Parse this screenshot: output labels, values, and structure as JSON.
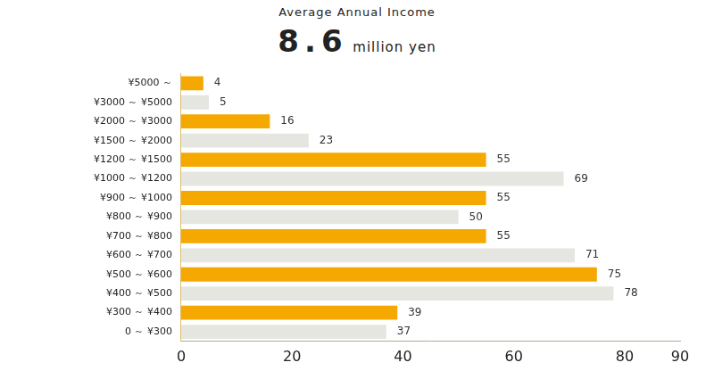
{
  "chart_data": {
    "type": "bar",
    "orientation": "horizontal",
    "title": "Average Annual Income",
    "subtitle": "8.6 million yen",
    "categories": [
      "¥5000 ～",
      "¥3000 ～ ¥5000",
      "¥2000 ～ ¥3000",
      "¥1500 ～ ¥2000",
      "¥1200 ～ ¥1500",
      "¥1000 ～ ¥1200",
      "¥900 ～ ¥1000",
      "¥800 ～ ¥900",
      "¥700 ～ ¥800",
      "¥600 ～ ¥700",
      "¥500 ～ ¥600",
      "¥400 ～ ¥500",
      "¥300 ～ ¥400",
      "0 ～ ¥300"
    ],
    "values": [
      4,
      5,
      16,
      23,
      55,
      69,
      55,
      50,
      55,
      71,
      75,
      78,
      39,
      37
    ],
    "colors": [
      "#f5a800",
      "#e6e6e1",
      "#f5a800",
      "#e6e6e1",
      "#f5a800",
      "#e6e6e1",
      "#f5a800",
      "#e6e6e1",
      "#f5a800",
      "#e6e6e1",
      "#f5a800",
      "#e6e6e1",
      "#f5a800",
      "#e6e6e1"
    ],
    "xlim": [
      0,
      90
    ],
    "xticks": [
      0,
      20,
      40,
      60,
      80,
      90
    ],
    "grid": false,
    "data_labels": true
  }
}
